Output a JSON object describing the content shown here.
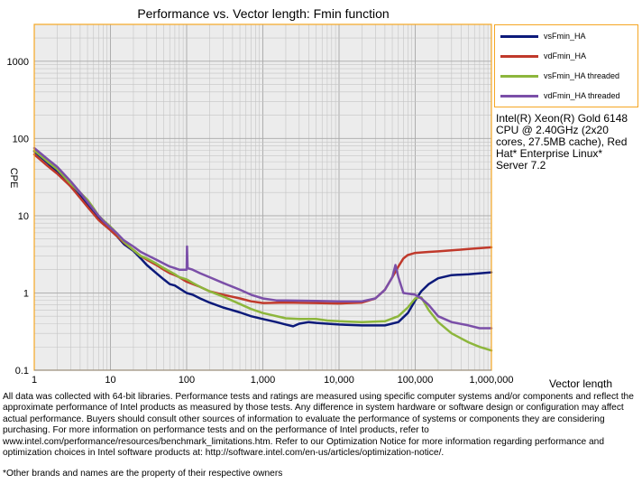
{
  "chart_data": {
    "type": "line",
    "title": "Performance vs. Vector length: Fmin function",
    "xlabel": "Vector length",
    "ylabel": "CPE",
    "x_scale": "log",
    "y_scale": "log",
    "xlim": [
      1,
      1000000
    ],
    "ylim": [
      0.1,
      3000
    ],
    "x_ticks": [
      1,
      10,
      100,
      1000,
      10000,
      100000,
      1000000
    ],
    "x_tick_labels": [
      "1",
      "10",
      "100",
      "1,000",
      "10,000",
      "100,000",
      "1,000,000"
    ],
    "y_ticks": [
      0.1,
      1,
      10,
      100,
      1000
    ],
    "y_tick_labels": [
      "0.1",
      "1",
      "10",
      "100",
      "1000"
    ],
    "grid": true,
    "legend_position": "right",
    "series": [
      {
        "name": "vsFmin_HA",
        "color": "#0c1a7a",
        "points": [
          [
            1,
            68
          ],
          [
            1.5,
            48
          ],
          [
            2,
            37
          ],
          [
            3,
            24
          ],
          [
            4,
            18
          ],
          [
            5,
            14
          ],
          [
            6,
            11
          ],
          [
            7,
            9.5
          ],
          [
            8,
            8
          ],
          [
            10,
            6.5
          ],
          [
            12,
            5.5
          ],
          [
            15,
            4.3
          ],
          [
            20,
            3.5
          ],
          [
            25,
            2.8
          ],
          [
            30,
            2.3
          ],
          [
            40,
            1.8
          ],
          [
            50,
            1.5
          ],
          [
            60,
            1.3
          ],
          [
            70,
            1.25
          ],
          [
            80,
            1.15
          ],
          [
            100,
            1.0
          ],
          [
            120,
            0.95
          ],
          [
            150,
            0.85
          ],
          [
            200,
            0.75
          ],
          [
            300,
            0.65
          ],
          [
            500,
            0.56
          ],
          [
            700,
            0.5
          ],
          [
            1000,
            0.46
          ],
          [
            1500,
            0.42
          ],
          [
            2000,
            0.39
          ],
          [
            2500,
            0.37
          ],
          [
            3000,
            0.4
          ],
          [
            4000,
            0.42
          ],
          [
            5000,
            0.41
          ],
          [
            7000,
            0.4
          ],
          [
            10000,
            0.39
          ],
          [
            20000,
            0.38
          ],
          [
            40000,
            0.38
          ],
          [
            60000,
            0.42
          ],
          [
            80000,
            0.55
          ],
          [
            100000,
            0.8
          ],
          [
            120000,
            1.05
          ],
          [
            150000,
            1.3
          ],
          [
            200000,
            1.55
          ],
          [
            300000,
            1.7
          ],
          [
            500000,
            1.75
          ],
          [
            1000000,
            1.85
          ]
        ]
      },
      {
        "name": "vdFmin_HA",
        "color": "#c0392b",
        "points": [
          [
            1,
            62
          ],
          [
            1.5,
            44
          ],
          [
            2,
            35
          ],
          [
            3,
            24
          ],
          [
            4,
            17
          ],
          [
            5,
            13
          ],
          [
            6,
            10.5
          ],
          [
            7,
            8.8
          ],
          [
            8,
            7.8
          ],
          [
            10,
            6.5
          ],
          [
            12,
            5.5
          ],
          [
            15,
            4.5
          ],
          [
            20,
            3.6
          ],
          [
            25,
            3.0
          ],
          [
            30,
            2.7
          ],
          [
            40,
            2.3
          ],
          [
            50,
            2.0
          ],
          [
            60,
            1.8
          ],
          [
            70,
            1.7
          ],
          [
            80,
            1.6
          ],
          [
            100,
            1.4
          ],
          [
            150,
            1.2
          ],
          [
            200,
            1.05
          ],
          [
            300,
            0.95
          ],
          [
            500,
            0.85
          ],
          [
            700,
            0.78
          ],
          [
            1000,
            0.74
          ],
          [
            2000,
            0.75
          ],
          [
            5000,
            0.74
          ],
          [
            10000,
            0.73
          ],
          [
            20000,
            0.75
          ],
          [
            30000,
            0.85
          ],
          [
            40000,
            1.1
          ],
          [
            50000,
            1.6
          ],
          [
            60000,
            2.2
          ],
          [
            70000,
            2.8
          ],
          [
            80000,
            3.1
          ],
          [
            100000,
            3.3
          ],
          [
            150000,
            3.4
          ],
          [
            200000,
            3.45
          ],
          [
            500000,
            3.7
          ],
          [
            1000000,
            3.9
          ]
        ]
      },
      {
        "name": "vsFmin_HA threaded",
        "color": "#8db63c",
        "points": [
          [
            1,
            70
          ],
          [
            1.5,
            50
          ],
          [
            2,
            40
          ],
          [
            3,
            26
          ],
          [
            4,
            20
          ],
          [
            5,
            16
          ],
          [
            6,
            12.5
          ],
          [
            7,
            10
          ],
          [
            8,
            8.8
          ],
          [
            10,
            7.2
          ],
          [
            12,
            6.0
          ],
          [
            15,
            4.6
          ],
          [
            20,
            3.6
          ],
          [
            25,
            3.0
          ],
          [
            30,
            2.8
          ],
          [
            40,
            2.4
          ],
          [
            50,
            2.1
          ],
          [
            60,
            1.9
          ],
          [
            70,
            1.75
          ],
          [
            80,
            1.6
          ],
          [
            100,
            1.5
          ],
          [
            120,
            1.35
          ],
          [
            150,
            1.2
          ],
          [
            200,
            1.05
          ],
          [
            300,
            0.9
          ],
          [
            500,
            0.72
          ],
          [
            700,
            0.62
          ],
          [
            1000,
            0.55
          ],
          [
            2000,
            0.47
          ],
          [
            3000,
            0.46
          ],
          [
            5000,
            0.46
          ],
          [
            7000,
            0.44
          ],
          [
            10000,
            0.43
          ],
          [
            20000,
            0.42
          ],
          [
            40000,
            0.43
          ],
          [
            60000,
            0.5
          ],
          [
            80000,
            0.65
          ],
          [
            100000,
            0.85
          ],
          [
            120000,
            0.88
          ],
          [
            150000,
            0.6
          ],
          [
            200000,
            0.42
          ],
          [
            300000,
            0.3
          ],
          [
            500000,
            0.23
          ],
          [
            700000,
            0.2
          ],
          [
            1000000,
            0.18
          ]
        ]
      },
      {
        "name": "vdFmin_HA threaded",
        "color": "#7b4fa8",
        "points": [
          [
            1,
            75
          ],
          [
            1.5,
            54
          ],
          [
            2,
            43
          ],
          [
            3,
            28
          ],
          [
            4,
            20
          ],
          [
            5,
            15
          ],
          [
            6,
            12
          ],
          [
            7,
            10
          ],
          [
            8,
            8.6
          ],
          [
            10,
            7.0
          ],
          [
            12,
            6.0
          ],
          [
            15,
            4.8
          ],
          [
            20,
            4.0
          ],
          [
            25,
            3.4
          ],
          [
            30,
            3.1
          ],
          [
            40,
            2.7
          ],
          [
            50,
            2.4
          ],
          [
            60,
            2.2
          ],
          [
            70,
            2.1
          ],
          [
            80,
            2.0
          ],
          [
            100,
            2.0
          ],
          [
            101,
            4.0
          ],
          [
            103,
            2.1
          ],
          [
            120,
            2.0
          ],
          [
            150,
            1.8
          ],
          [
            200,
            1.6
          ],
          [
            300,
            1.35
          ],
          [
            500,
            1.1
          ],
          [
            700,
            0.95
          ],
          [
            1000,
            0.85
          ],
          [
            1500,
            0.8
          ],
          [
            2000,
            0.8
          ],
          [
            5000,
            0.79
          ],
          [
            10000,
            0.78
          ],
          [
            20000,
            0.78
          ],
          [
            30000,
            0.85
          ],
          [
            40000,
            1.1
          ],
          [
            50000,
            1.6
          ],
          [
            55000,
            2.3
          ],
          [
            60000,
            1.6
          ],
          [
            70000,
            1.0
          ],
          [
            100000,
            0.95
          ],
          [
            120000,
            0.85
          ],
          [
            150000,
            0.7
          ],
          [
            200000,
            0.5
          ],
          [
            300000,
            0.42
          ],
          [
            500000,
            0.38
          ],
          [
            700000,
            0.35
          ],
          [
            1000000,
            0.35
          ]
        ]
      }
    ]
  },
  "system_note": "Intel(R) Xeon(R) Gold 6148 CPU @ 2.40GHz (2x20 cores, 27.5MB cache), Red Hat* Enterprise Linux* Server 7.2",
  "disclaimer": "All data was collected with 64-bit libraries. Performance tests and ratings are measured using specific computer systems and/or components and reflect the approximate performance of Intel products as measured by those tests. Any difference in system hardware or software design or configuration may affect actual performance. Buyers should consult other sources of information to evaluate the performance of systems or components they are considering purchasing. For more information on performance tests and on the performance of Intel products, refer to www.intel.com/performance/resources/benchmark_limitations.htm. Refer to our Optimization Notice for more information regarding performance and optimization choices in Intel software products at: http://software.intel.com/en-us/articles/optimization-notice/.",
  "footnote": "*Other brands and names are the property of their respective owners"
}
